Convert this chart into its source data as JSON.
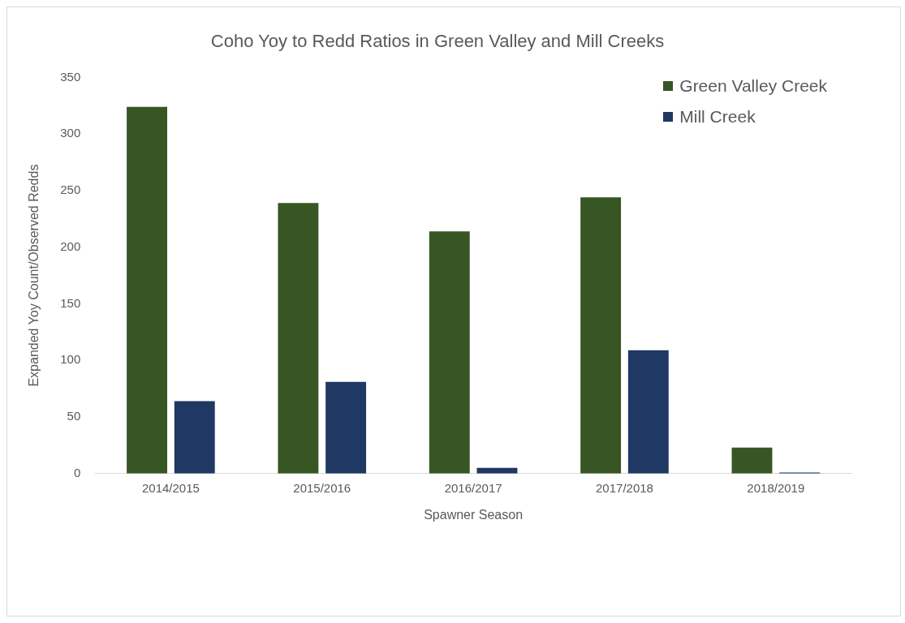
{
  "chart_data": {
    "type": "bar",
    "title": "Coho Yoy to Redd Ratios in Green Valley and Mill Creeks",
    "xlabel": "Spawner Season",
    "ylabel": "Expanded Yoy Count/Observed Redds",
    "categories": [
      "2014/2015",
      "2015/2016",
      "2016/2017",
      "2017/2018",
      "2018/2019"
    ],
    "series": [
      {
        "name": "Green Valley Creek",
        "color": "#375623",
        "values": [
          324,
          239,
          214,
          244,
          23
        ]
      },
      {
        "name": "Mill Creek",
        "color": "#1f3864",
        "values": [
          64,
          81,
          5,
          109,
          1
        ]
      }
    ],
    "ylim": [
      0,
      350
    ],
    "yticks": [
      0,
      50,
      100,
      150,
      200,
      250,
      300,
      350
    ],
    "grid": false,
    "legend": "top right"
  }
}
